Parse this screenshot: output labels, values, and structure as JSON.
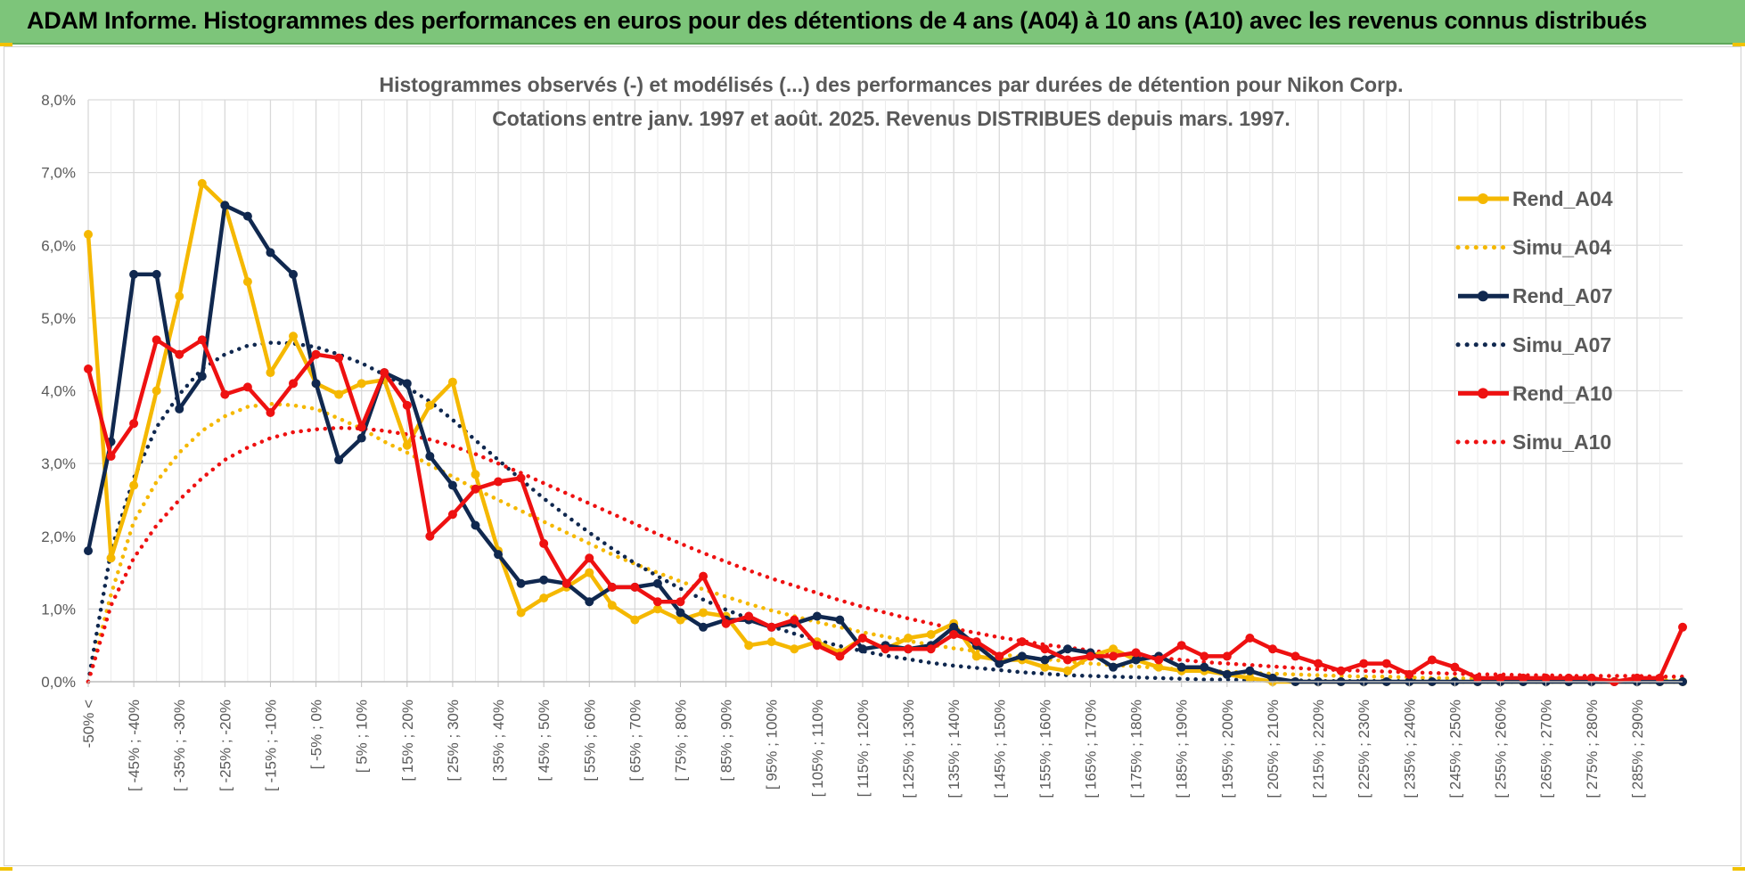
{
  "banner": {
    "title": "ADAM Informe. Histogrammes des performances en euros pour des détentions de 4 ans (A04) à 10 ans (A10) avec les revenus connus distribués"
  },
  "colors": {
    "banner_bg": "#7dc57a",
    "A04": "#f5b800",
    "A07": "#10284f",
    "A10": "#ee1111",
    "grid": "#d9d9d9",
    "text": "#595959"
  },
  "chart_data": {
    "type": "line",
    "title_lines": [
      "Histogrammes observés (-) et modélisés (...) des performances par durées de détention pour Nikon Corp.",
      "Cotations entre janv. 1997 et août. 2025. Revenus DISTRIBUES depuis mars. 1997."
    ],
    "ylim": [
      0,
      8
    ],
    "y_ticks": [
      "0,0%",
      "1,0%",
      "2,0%",
      "3,0%",
      "4,0%",
      "5,0%",
      "6,0%",
      "7,0%",
      "8,0%"
    ],
    "x_tick_labels": [
      "-50% <",
      "[ -45% ; -40%",
      "[ -35% ; -30%",
      "[ -25% ; -20%",
      "[ -15% ; -10%",
      "[ -5% ; 0%",
      "[ 5% ; 10%",
      "[ 15% ; 20%",
      "[ 25% ; 30%",
      "[ 35% ; 40%",
      "[ 45% ; 50%",
      "[ 55% ; 60%",
      "[ 65% ; 70%",
      "[ 75% ; 80%",
      "[ 85% ; 90%",
      "[ 95% ; 100%",
      "[ 105% ; 110%",
      "[ 115% ; 120%",
      "[ 125% ; 130%",
      "[ 135% ; 140%",
      "[ 145% ; 150%",
      "[ 155% ; 160%",
      "[ 165% ; 170%",
      "[ 175% ; 180%",
      "[ 185% ; 190%",
      "[ 195% ; 200%",
      "[ 205% ; 210%",
      "[ 215% ; 220%",
      "[ 225% ; 230%",
      "[ 235% ; 240%",
      "[ 245% ; 250%",
      "[ 255% ; 260%",
      "[ 265% ; 270%",
      "[ 275% ; 280%",
      "[ 285% ; 290%"
    ],
    "legend_position": "right",
    "grid": true,
    "series": [
      {
        "name": "Rend_A04",
        "style": "solid",
        "color_key": "A04",
        "values": [
          6.15,
          1.7,
          2.7,
          4.0,
          5.3,
          6.85,
          6.55,
          5.5,
          4.25,
          4.75,
          4.1,
          3.95,
          4.1,
          4.15,
          3.25,
          3.8,
          4.12,
          2.85,
          1.8,
          0.95,
          1.15,
          1.3,
          1.5,
          1.05,
          0.85,
          1.0,
          0.85,
          0.95,
          0.9,
          0.5,
          0.55,
          0.45,
          0.55,
          0.4,
          0.6,
          0.45,
          0.6,
          0.65,
          0.8,
          0.35,
          0.3,
          0.3,
          0.2,
          0.15,
          0.35,
          0.45,
          0.3,
          0.2,
          0.15,
          0.15,
          0.1,
          0.05,
          0.0,
          0.0,
          0.0,
          0.0,
          0.0,
          0.0,
          0.0,
          0.0,
          0.0,
          0.0,
          0.0,
          0.0,
          0.0,
          0.0,
          0.0,
          0.0,
          0.0,
          0.0,
          0.0
        ]
      },
      {
        "name": "Simu_A04",
        "style": "dotted",
        "color_key": "A04",
        "values": [
          0.0,
          1.2,
          2.2,
          2.75,
          3.15,
          3.45,
          3.65,
          3.78,
          3.82,
          3.8,
          3.75,
          3.62,
          3.48,
          3.3,
          3.15,
          2.98,
          2.82,
          2.65,
          2.5,
          2.35,
          2.2,
          2.05,
          1.9,
          1.75,
          1.62,
          1.5,
          1.38,
          1.27,
          1.17,
          1.07,
          0.98,
          0.9,
          0.82,
          0.75,
          0.68,
          0.62,
          0.56,
          0.51,
          0.46,
          0.42,
          0.38,
          0.34,
          0.31,
          0.28,
          0.25,
          0.23,
          0.21,
          0.19,
          0.17,
          0.15,
          0.14,
          0.12,
          0.11,
          0.1,
          0.09,
          0.08,
          0.07,
          0.07,
          0.06,
          0.05,
          0.05,
          0.04,
          0.04,
          0.03,
          0.03,
          0.03,
          0.02,
          0.02,
          0.02,
          0.02,
          0.02
        ]
      },
      {
        "name": "Rend_A07",
        "style": "solid",
        "color_key": "A07",
        "values": [
          1.8,
          3.3,
          5.6,
          5.6,
          3.75,
          4.2,
          6.55,
          6.4,
          5.9,
          5.6,
          4.1,
          3.05,
          3.35,
          4.25,
          4.1,
          3.1,
          2.7,
          2.15,
          1.75,
          1.35,
          1.4,
          1.35,
          1.1,
          1.3,
          1.3,
          1.35,
          0.95,
          0.75,
          0.85,
          0.85,
          0.75,
          0.8,
          0.9,
          0.85,
          0.45,
          0.5,
          0.45,
          0.5,
          0.75,
          0.5,
          0.25,
          0.35,
          0.3,
          0.45,
          0.4,
          0.2,
          0.3,
          0.35,
          0.2,
          0.2,
          0.1,
          0.15,
          0.05,
          0.0,
          0.0,
          0.0,
          0.0,
          0.0,
          0.0,
          0.0,
          0.0,
          0.0,
          0.0,
          0.0,
          0.0,
          0.0,
          0.0,
          0.0,
          0.0,
          0.0,
          0.0
        ]
      },
      {
        "name": "Simu_A07",
        "style": "dotted",
        "color_key": "A07",
        "values": [
          0.0,
          1.8,
          2.8,
          3.5,
          3.95,
          4.3,
          4.5,
          4.62,
          4.66,
          4.65,
          4.6,
          4.5,
          4.38,
          4.22,
          4.05,
          3.85,
          3.6,
          3.32,
          3.05,
          2.78,
          2.52,
          2.28,
          2.05,
          1.83,
          1.63,
          1.45,
          1.28,
          1.13,
          0.99,
          0.87,
          0.76,
          0.66,
          0.57,
          0.49,
          0.42,
          0.36,
          0.31,
          0.26,
          0.22,
          0.19,
          0.16,
          0.13,
          0.11,
          0.09,
          0.08,
          0.07,
          0.06,
          0.05,
          0.04,
          0.03,
          0.03,
          0.02,
          0.02,
          0.02,
          0.01,
          0.01,
          0.01,
          0.01,
          0.01,
          0.01,
          0.0,
          0.0,
          0.0,
          0.0,
          0.0,
          0.0,
          0.0,
          0.0,
          0.0,
          0.0,
          0.0
        ]
      },
      {
        "name": "Rend_A10",
        "style": "solid",
        "color_key": "A10",
        "values": [
          4.3,
          3.1,
          3.55,
          4.7,
          4.5,
          4.7,
          3.95,
          4.05,
          3.7,
          4.1,
          4.5,
          4.45,
          3.5,
          4.25,
          3.8,
          2.0,
          2.3,
          2.65,
          2.75,
          2.8,
          1.9,
          1.35,
          1.7,
          1.3,
          1.3,
          1.1,
          1.1,
          1.45,
          0.8,
          0.9,
          0.75,
          0.85,
          0.5,
          0.35,
          0.6,
          0.45,
          0.45,
          0.45,
          0.65,
          0.55,
          0.35,
          0.55,
          0.45,
          0.3,
          0.35,
          0.35,
          0.4,
          0.3,
          0.5,
          0.35,
          0.35,
          0.6,
          0.45,
          0.35,
          0.25,
          0.15,
          0.25,
          0.25,
          0.1,
          0.3,
          0.2,
          0.05,
          0.05,
          0.05,
          0.05,
          0.05,
          0.05,
          0.0,
          0.05,
          0.05,
          0.75
        ]
      },
      {
        "name": "Simu_A10",
        "style": "dotted",
        "color_key": "A10",
        "values": [
          0.0,
          1.05,
          1.7,
          2.15,
          2.5,
          2.8,
          3.05,
          3.22,
          3.35,
          3.43,
          3.47,
          3.49,
          3.48,
          3.45,
          3.4,
          3.33,
          3.24,
          3.13,
          3.0,
          2.87,
          2.73,
          2.59,
          2.45,
          2.31,
          2.17,
          2.03,
          1.9,
          1.77,
          1.65,
          1.53,
          1.42,
          1.32,
          1.22,
          1.12,
          1.03,
          0.95,
          0.87,
          0.8,
          0.73,
          0.67,
          0.61,
          0.56,
          0.51,
          0.47,
          0.43,
          0.39,
          0.36,
          0.33,
          0.3,
          0.27,
          0.25,
          0.23,
          0.21,
          0.19,
          0.17,
          0.16,
          0.15,
          0.14,
          0.13,
          0.12,
          0.11,
          0.1,
          0.1,
          0.09,
          0.09,
          0.08,
          0.08,
          0.08,
          0.08,
          0.07,
          0.07
        ]
      }
    ]
  }
}
